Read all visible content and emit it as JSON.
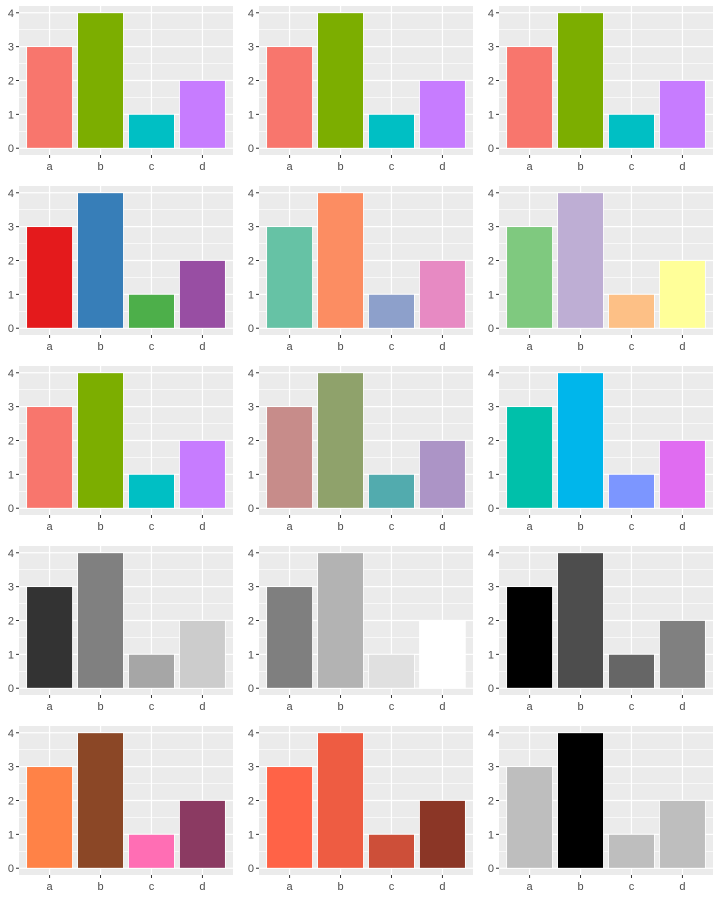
{
  "figure": {
    "layout": {
      "rows": 5,
      "cols": 3
    },
    "panel_background": "#EBEBEB",
    "grid_color": "#FFFFFF",
    "text_color": "#4D4D4D",
    "tick_color": "#333333",
    "bar_outline": "#FFFFFF"
  },
  "chart_data": [
    {
      "type": "bar",
      "title": "",
      "xlabel": "",
      "ylabel": "",
      "categories": [
        "a",
        "b",
        "c",
        "d"
      ],
      "values": [
        3,
        4,
        1,
        2
      ],
      "ylim": [
        0,
        4
      ],
      "yticks": [
        0,
        1,
        2,
        3,
        4
      ],
      "grid": true,
      "legend": "none",
      "colors": [
        "#F8766D",
        "#7CAE00",
        "#00BFC4",
        "#C77CFF"
      ]
    },
    {
      "type": "bar",
      "title": "",
      "xlabel": "",
      "ylabel": "",
      "categories": [
        "a",
        "b",
        "c",
        "d"
      ],
      "values": [
        3,
        4,
        1,
        2
      ],
      "ylim": [
        0,
        4
      ],
      "yticks": [
        0,
        1,
        2,
        3,
        4
      ],
      "grid": true,
      "legend": "none",
      "colors": [
        "#F8766D",
        "#7CAE00",
        "#00BFC4",
        "#C77CFF"
      ]
    },
    {
      "type": "bar",
      "title": "",
      "xlabel": "",
      "ylabel": "",
      "categories": [
        "a",
        "b",
        "c",
        "d"
      ],
      "values": [
        3,
        4,
        1,
        2
      ],
      "ylim": [
        0,
        4
      ],
      "yticks": [
        0,
        1,
        2,
        3,
        4
      ],
      "grid": true,
      "legend": "none",
      "colors": [
        "#F8766D",
        "#7CAE00",
        "#00BFC4",
        "#C77CFF"
      ]
    },
    {
      "type": "bar",
      "title": "",
      "xlabel": "",
      "ylabel": "",
      "categories": [
        "a",
        "b",
        "c",
        "d"
      ],
      "values": [
        3,
        4,
        1,
        2
      ],
      "ylim": [
        0,
        4
      ],
      "yticks": [
        0,
        1,
        2,
        3,
        4
      ],
      "grid": true,
      "legend": "none",
      "colors": [
        "#E41A1C",
        "#377EB8",
        "#4DAF4A",
        "#984EA3"
      ]
    },
    {
      "type": "bar",
      "title": "",
      "xlabel": "",
      "ylabel": "",
      "categories": [
        "a",
        "b",
        "c",
        "d"
      ],
      "values": [
        3,
        4,
        1,
        2
      ],
      "ylim": [
        0,
        4
      ],
      "yticks": [
        0,
        1,
        2,
        3,
        4
      ],
      "grid": true,
      "legend": "none",
      "colors": [
        "#66C2A5",
        "#FC8D62",
        "#8DA0CB",
        "#E78AC3"
      ]
    },
    {
      "type": "bar",
      "title": "",
      "xlabel": "",
      "ylabel": "",
      "categories": [
        "a",
        "b",
        "c",
        "d"
      ],
      "values": [
        3,
        4,
        1,
        2
      ],
      "ylim": [
        0,
        4
      ],
      "yticks": [
        0,
        1,
        2,
        3,
        4
      ],
      "grid": true,
      "legend": "none",
      "colors": [
        "#7FC97F",
        "#BEAED4",
        "#FDC086",
        "#FFFF99"
      ]
    },
    {
      "type": "bar",
      "title": "",
      "xlabel": "",
      "ylabel": "",
      "categories": [
        "a",
        "b",
        "c",
        "d"
      ],
      "values": [
        3,
        4,
        1,
        2
      ],
      "ylim": [
        0,
        4
      ],
      "yticks": [
        0,
        1,
        2,
        3,
        4
      ],
      "grid": true,
      "legend": "none",
      "colors": [
        "#F8766D",
        "#7CAE00",
        "#00BFC4",
        "#C77CFF"
      ]
    },
    {
      "type": "bar",
      "title": "",
      "xlabel": "",
      "ylabel": "",
      "categories": [
        "a",
        "b",
        "c",
        "d"
      ],
      "values": [
        3,
        4,
        1,
        2
      ],
      "ylim": [
        0,
        4
      ],
      "yticks": [
        0,
        1,
        2,
        3,
        4
      ],
      "grid": true,
      "legend": "none",
      "colors": [
        "#C78C8A",
        "#8FA26B",
        "#52ABAE",
        "#AC94C6"
      ]
    },
    {
      "type": "bar",
      "title": "",
      "xlabel": "",
      "ylabel": "",
      "categories": [
        "a",
        "b",
        "c",
        "d"
      ],
      "values": [
        3,
        4,
        1,
        2
      ],
      "ylim": [
        0,
        4
      ],
      "yticks": [
        0,
        1,
        2,
        3,
        4
      ],
      "grid": true,
      "legend": "none",
      "colors": [
        "#00C0AA",
        "#00B6EB",
        "#7C96FF",
        "#E06CF1"
      ]
    },
    {
      "type": "bar",
      "title": "",
      "xlabel": "",
      "ylabel": "",
      "categories": [
        "a",
        "b",
        "c",
        "d"
      ],
      "values": [
        3,
        4,
        1,
        2
      ],
      "ylim": [
        0,
        4
      ],
      "yticks": [
        0,
        1,
        2,
        3,
        4
      ],
      "grid": true,
      "legend": "none",
      "colors": [
        "#333333",
        "#808080",
        "#A6A6A6",
        "#CCCCCC"
      ]
    },
    {
      "type": "bar",
      "title": "",
      "xlabel": "",
      "ylabel": "",
      "categories": [
        "a",
        "b",
        "c",
        "d"
      ],
      "values": [
        3,
        4,
        1,
        2
      ],
      "ylim": [
        0,
        4
      ],
      "yticks": [
        0,
        1,
        2,
        3,
        4
      ],
      "grid": true,
      "legend": "none",
      "colors": [
        "#7F7F7F",
        "#B3B3B3",
        "#E0E0E0",
        "#FFFFFF"
      ]
    },
    {
      "type": "bar",
      "title": "",
      "xlabel": "",
      "ylabel": "",
      "categories": [
        "a",
        "b",
        "c",
        "d"
      ],
      "values": [
        3,
        4,
        1,
        2
      ],
      "ylim": [
        0,
        4
      ],
      "yticks": [
        0,
        1,
        2,
        3,
        4
      ],
      "grid": true,
      "legend": "none",
      "colors": [
        "#000000",
        "#4D4D4D",
        "#666666",
        "#808080"
      ]
    },
    {
      "type": "bar",
      "title": "",
      "xlabel": "",
      "ylabel": "",
      "categories": [
        "a",
        "b",
        "c",
        "d"
      ],
      "values": [
        3,
        4,
        1,
        2
      ],
      "ylim": [
        0,
        4
      ],
      "yticks": [
        0,
        1,
        2,
        3,
        4
      ],
      "grid": true,
      "legend": "none",
      "colors": [
        "#FF8247",
        "#8B4726",
        "#FF6EB4",
        "#8B3A62"
      ]
    },
    {
      "type": "bar",
      "title": "",
      "xlabel": "",
      "ylabel": "",
      "categories": [
        "a",
        "b",
        "c",
        "d"
      ],
      "values": [
        3,
        4,
        1,
        2
      ],
      "ylim": [
        0,
        4
      ],
      "yticks": [
        0,
        1,
        2,
        3,
        4
      ],
      "grid": true,
      "legend": "none",
      "colors": [
        "#FF6347",
        "#EE5C42",
        "#CD4F39",
        "#8B3626"
      ]
    },
    {
      "type": "bar",
      "title": "",
      "xlabel": "",
      "ylabel": "",
      "categories": [
        "a",
        "b",
        "c",
        "d"
      ],
      "values": [
        3,
        4,
        1,
        2
      ],
      "ylim": [
        0,
        4
      ],
      "yticks": [
        0,
        1,
        2,
        3,
        4
      ],
      "grid": true,
      "legend": "none",
      "colors": [
        "#BEBEBE",
        "#000000",
        "#BEBEBE",
        "#BEBEBE"
      ]
    }
  ]
}
